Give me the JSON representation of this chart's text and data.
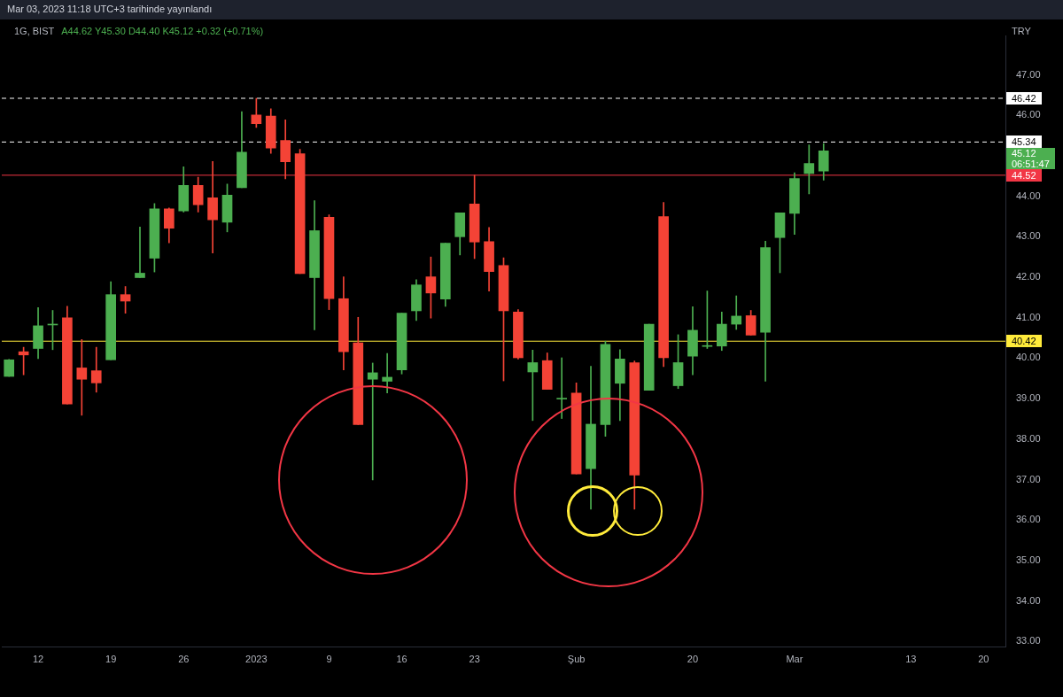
{
  "chart_data": {
    "type": "candlestick",
    "title": "1G, BIST",
    "subtitle": "Mar 03, 2023 11:18 UTC+3 tarihinde yayınlandı",
    "ylabel": "TRY",
    "annotations": [
      "A44.62 Y45.30 D44.40 K45.12 +0.32 (+0.71%)",
      "45.12",
      "06:51:47"
    ],
    "categories": [
      null,
      null,
      "12",
      null,
      null,
      null,
      null,
      "19",
      null,
      null,
      null,
      null,
      "26",
      null,
      null,
      null,
      null,
      "2023",
      null,
      null,
      null,
      null,
      "9",
      null,
      null,
      null,
      null,
      "16",
      null,
      null,
      null,
      null,
      "23",
      null,
      null,
      null,
      null,
      null,
      null,
      "Şub",
      null,
      null,
      null,
      null,
      null,
      null,
      null,
      "20",
      null,
      null,
      null,
      null,
      null,
      null,
      "Mar",
      null,
      null,
      null,
      null,
      null,
      null,
      null,
      "13",
      null,
      null,
      null,
      null,
      "20",
      null
    ],
    "ohlc": [
      [
        39.55,
        39.97,
        39.55,
        39.96
      ],
      [
        40.16,
        40.27,
        39.59,
        40.08
      ],
      [
        40.24,
        41.25,
        39.99,
        40.8
      ],
      [
        40.82,
        41.18,
        40.21,
        40.84
      ],
      [
        41.0,
        41.28,
        38.87,
        38.87
      ],
      [
        39.76,
        40.46,
        38.59,
        39.48
      ],
      [
        39.69,
        40.27,
        39.16,
        39.39
      ],
      [
        39.96,
        41.89,
        39.96,
        41.57
      ],
      [
        41.57,
        41.77,
        41.11,
        41.41
      ],
      [
        41.99,
        43.24,
        41.99,
        42.1
      ],
      [
        42.47,
        43.82,
        42.13,
        43.69
      ],
      [
        43.69,
        43.71,
        42.85,
        43.21
      ],
      [
        43.64,
        44.73,
        43.61,
        44.27
      ],
      [
        44.27,
        44.47,
        43.61,
        43.79
      ],
      [
        43.96,
        44.86,
        42.6,
        43.42
      ],
      [
        43.36,
        44.3,
        43.12,
        44.03
      ],
      [
        44.21,
        46.09,
        44.21,
        45.09
      ],
      [
        46.01,
        46.42,
        45.7,
        45.79
      ],
      [
        45.98,
        46.16,
        45.06,
        45.19
      ],
      [
        45.38,
        45.89,
        44.43,
        44.85
      ],
      [
        45.05,
        45.16,
        42.09,
        42.09
      ],
      [
        41.99,
        43.89,
        40.7,
        43.15
      ],
      [
        43.48,
        43.54,
        41.2,
        41.47
      ],
      [
        41.47,
        42.01,
        39.71,
        40.16
      ],
      [
        40.38,
        41.01,
        38.36,
        38.36
      ],
      [
        39.48,
        39.88,
        36.99,
        39.64
      ],
      [
        39.43,
        40.12,
        39.14,
        39.53
      ],
      [
        39.71,
        41.11,
        39.61,
        41.11
      ],
      [
        41.17,
        41.94,
        40.93,
        41.81
      ],
      [
        42.01,
        42.5,
        40.99,
        41.61
      ],
      [
        41.46,
        42.84,
        41.28,
        42.84
      ],
      [
        43.0,
        43.59,
        42.55,
        43.59
      ],
      [
        43.81,
        44.52,
        42.46,
        42.87
      ],
      [
        42.88,
        43.23,
        41.66,
        42.14
      ],
      [
        42.29,
        42.48,
        39.44,
        41.17
      ],
      [
        41.14,
        41.2,
        39.98,
        40.01
      ],
      [
        39.66,
        40.2,
        38.46,
        39.89
      ],
      [
        39.94,
        40.13,
        39.23,
        39.23
      ],
      [
        38.99,
        40.01,
        38.51,
        39.01
      ],
      [
        39.14,
        39.39,
        37.14,
        37.14
      ],
      [
        37.27,
        39.8,
        36.27,
        38.37
      ],
      [
        38.36,
        40.42,
        38.07,
        40.34
      ],
      [
        39.38,
        40.21,
        38.46,
        39.98
      ],
      [
        39.89,
        39.93,
        36.27,
        37.11
      ],
      [
        39.21,
        40.84,
        39.21,
        40.84
      ],
      [
        43.5,
        43.85,
        39.79,
        40.01
      ],
      [
        39.32,
        40.58,
        39.25,
        39.89
      ],
      [
        40.05,
        41.27,
        39.59,
        40.69
      ],
      [
        40.29,
        41.66,
        40.24,
        40.31
      ],
      [
        40.3,
        41.14,
        40.19,
        40.84
      ],
      [
        40.84,
        41.54,
        40.71,
        41.04
      ],
      [
        41.05,
        41.18,
        40.57,
        40.57
      ],
      [
        40.64,
        42.89,
        39.43,
        42.73
      ],
      [
        42.98,
        43.59,
        42.11,
        43.59
      ],
      [
        43.58,
        44.58,
        43.06,
        44.44
      ],
      [
        44.56,
        45.27,
        44.06,
        44.81
      ],
      [
        44.62,
        45.3,
        44.4,
        45.12
      ],
      null,
      null,
      null,
      null,
      null,
      null,
      null,
      null,
      null,
      null,
      null,
      null
    ],
    "colors": [
      "#4caf50",
      "#f44336",
      "#4caf50",
      "#4caf50",
      "#f44336",
      "#f44336",
      "#f44336",
      "#4caf50",
      "#f44336",
      "#4caf50",
      "#4caf50",
      "#f44336",
      "#4caf50",
      "#f44336",
      "#f44336",
      "#4caf50",
      "#4caf50",
      "#f44336",
      "#f44336",
      "#f44336",
      "#f44336",
      "#4caf50",
      "#f44336",
      "#f44336",
      "#f44336",
      "#4caf50",
      "#4caf50",
      "#4caf50",
      "#4caf50",
      "#f44336",
      "#4caf50",
      "#4caf50",
      "#f44336",
      "#f44336",
      "#f44336",
      "#f44336",
      "#4caf50",
      "#f44336",
      "#4caf50",
      "#f44336",
      "#4caf50",
      "#4caf50",
      "#4caf50",
      "#f44336",
      "#4caf50",
      "#f44336",
      "#4caf50",
      "#4caf50",
      "#4caf50",
      "#4caf50",
      "#4caf50",
      "#f44336",
      "#4caf50",
      "#4caf50",
      "#4caf50",
      "#4caf50",
      "#4caf50",
      null,
      null,
      null,
      null,
      null,
      null,
      null,
      null,
      null,
      null,
      null,
      null
    ],
    "ylim": [
      32.86,
      47.96
    ],
    "yticks": [
      {
        "value": 33,
        "label": "33.00"
      },
      {
        "value": 34,
        "label": "34.00"
      },
      {
        "value": 35,
        "label": "35.00"
      },
      {
        "value": 36,
        "label": "36.00"
      },
      {
        "value": 37,
        "label": "37.00"
      },
      {
        "value": 38,
        "label": "38.00"
      },
      {
        "value": 39,
        "label": "39.00"
      },
      {
        "value": 40,
        "label": "40.00"
      },
      {
        "value": 41,
        "label": "41.00"
      },
      {
        "value": 42,
        "label": "42.00"
      },
      {
        "value": 43,
        "label": "43.00"
      },
      {
        "value": 44,
        "label": "44.00"
      },
      {
        "value": 46,
        "label": "46.00"
      },
      {
        "value": 47,
        "label": "47.00"
      }
    ],
    "ref_lines": [
      {
        "axis": "y",
        "value": 46.42,
        "label": "46.42",
        "color": "#ffffff",
        "line_style": "dashed"
      },
      {
        "axis": "y",
        "value": 45.34,
        "label": "45.34",
        "color": "#ffffff",
        "line_style": "dashed"
      },
      {
        "axis": "y",
        "value": 44.52,
        "label": "44.52",
        "color": "#f23645",
        "line_style": "solid"
      },
      {
        "axis": "y",
        "value": 40.42,
        "label": "40.42",
        "color": "#ffeb3b",
        "line_style": "solid"
      }
    ],
    "grid": false,
    "legend": false
  }
}
